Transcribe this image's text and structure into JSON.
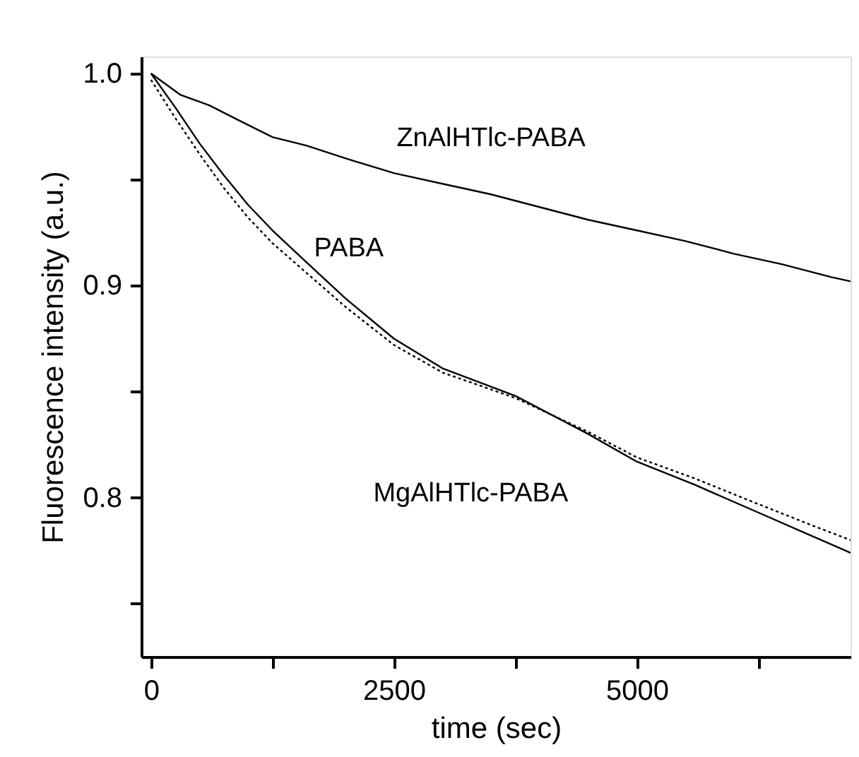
{
  "chart_data": {
    "type": "line",
    "xlabel": "time (sec)",
    "ylabel": "Fluorescence intensity (a.u.)",
    "xlim": [
      -100,
      7200
    ],
    "ylim": [
      0.725,
      1.008
    ],
    "xticks": [
      0,
      {
        "value": 1250,
        "label": null
      },
      2500,
      {
        "value": 3750,
        "label": null
      },
      5000,
      {
        "value": 6250,
        "label": null
      }
    ],
    "yticks": [
      {
        "value": 0.75,
        "label": null
      },
      0.8,
      {
        "value": 0.85,
        "label": null
      },
      0.9,
      {
        "value": 0.95,
        "label": null
      },
      {
        "value": 1.0,
        "label": "1.0"
      }
    ],
    "grid": false,
    "marker": "none",
    "series": [
      {
        "name": "ZnAlHTlc-PABA",
        "color": "#000000",
        "line_style": "solid",
        "x": [
          0,
          300,
          600,
          900,
          1250,
          1600,
          2000,
          2500,
          3000,
          3500,
          4000,
          4500,
          5000,
          5500,
          6000,
          6500,
          7000,
          7200
        ],
        "values": [
          1.0,
          0.99,
          0.985,
          0.978,
          0.97,
          0.966,
          0.96,
          0.953,
          0.948,
          0.943,
          0.937,
          0.931,
          0.926,
          0.921,
          0.915,
          0.91,
          0.904,
          0.902
        ]
      },
      {
        "name": "PABA",
        "color": "#000000",
        "line_style": "solid",
        "x": [
          0,
          250,
          500,
          750,
          1000,
          1250,
          1600,
          2000,
          2500,
          3000,
          3750,
          4500,
          5000,
          5600,
          6250,
          6800,
          7200
        ],
        "values": [
          1.0,
          0.984,
          0.967,
          0.952,
          0.938,
          0.926,
          0.911,
          0.894,
          0.875,
          0.861,
          0.848,
          0.83,
          0.817,
          0.806,
          0.793,
          0.782,
          0.774
        ]
      },
      {
        "name": "MgAlHTlc-PABA",
        "color": "#000000",
        "line_style": "dotted",
        "x": [
          0,
          250,
          500,
          750,
          1000,
          1250,
          1600,
          2000,
          2500,
          3000,
          3750,
          4500,
          5000,
          5600,
          6250,
          6800,
          7200
        ],
        "values": [
          0.997,
          0.979,
          0.962,
          0.946,
          0.932,
          0.92,
          0.906,
          0.89,
          0.872,
          0.859,
          0.847,
          0.831,
          0.819,
          0.809,
          0.797,
          0.787,
          0.78
        ]
      }
    ]
  }
}
